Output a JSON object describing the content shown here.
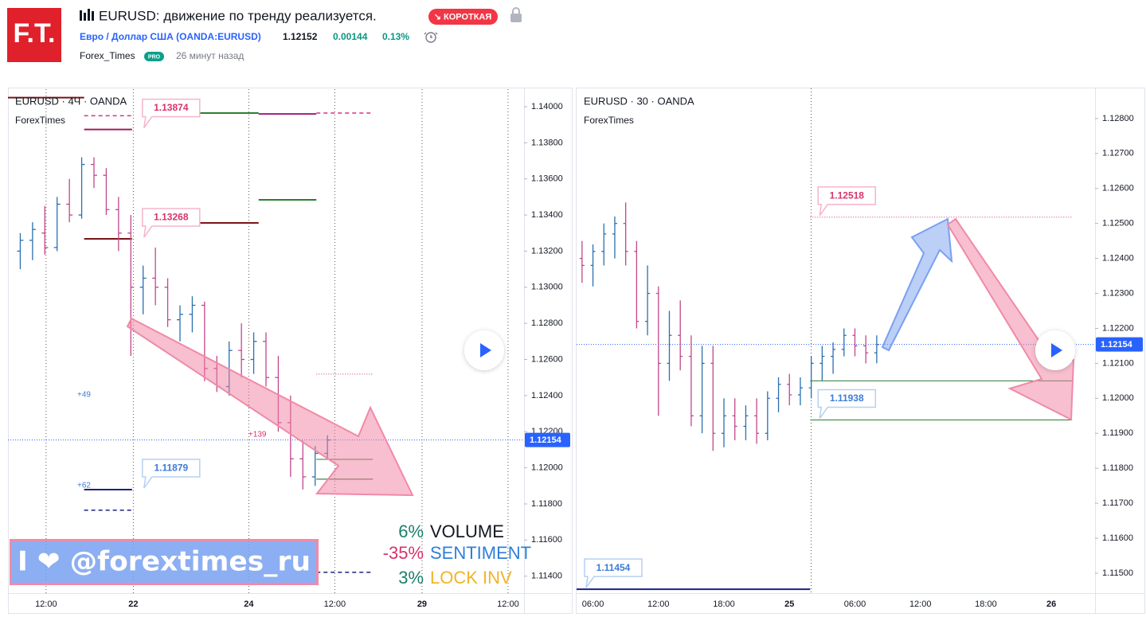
{
  "header": {
    "logo": "F.T.",
    "title": "EURUSD: движение по тренду реализуется.",
    "badge": "↘ КОРОТКАЯ",
    "symbol": "Евро / Доллар США (OANDA:EURUSD)",
    "price": "1.12152",
    "change": "0.00144",
    "change_pct": "0.13%",
    "author": "Forex_Times",
    "author_badge": "PRO",
    "time": "26 минут назад"
  },
  "overlay": {
    "banner": "I ❤ @forextimes_ru",
    "indicators": [
      {
        "value": "6%",
        "label": "VOLUME",
        "value_color": "#1b7f6a",
        "label_color": "#131722"
      },
      {
        "value": "-35%",
        "label": "SENTIMENT",
        "value_color": "#d6336c",
        "label_color": "#2f7fd8"
      },
      {
        "value": "3%",
        "label": "LOCK INV",
        "value_color": "#1b7f6a",
        "label_color": "#f0b429"
      }
    ]
  },
  "chart_data": [
    {
      "type": "ohlc",
      "title": "EURUSD · 4Ч · OANDA",
      "subtitle": "ForexTimes",
      "up_color": "#2a6fb0",
      "down_color": "#c2468c",
      "xlim": [
        -1,
        41
      ],
      "ylim": [
        1.11306,
        1.14097
      ],
      "grid": true,
      "last_price": 1.12154,
      "xticks": [
        {
          "value": 2.1,
          "label": "12:00"
        },
        {
          "value": 9.2,
          "label": "22"
        },
        {
          "value": 18.6,
          "label": "24"
        },
        {
          "value": 25.6,
          "label": "12:00"
        },
        {
          "value": 32.7,
          "label": "29"
        },
        {
          "value": 39.7,
          "label": "12:00"
        }
      ],
      "yticks": [
        {
          "value": 1.14,
          "label": "1.14000"
        },
        {
          "value": 1.138,
          "label": "1.13800"
        },
        {
          "value": 1.136,
          "label": "1.13600"
        },
        {
          "value": 1.134,
          "label": "1.13400"
        },
        {
          "value": 1.132,
          "label": "1.13200"
        },
        {
          "value": 1.13,
          "label": "1.13000"
        },
        {
          "value": 1.128,
          "label": "1.12800"
        },
        {
          "value": 1.126,
          "label": "1.12600"
        },
        {
          "value": 1.124,
          "label": "1.12400"
        },
        {
          "value": 1.122,
          "label": "1.12200"
        },
        {
          "value": 1.12,
          "label": "1.12000"
        },
        {
          "value": 1.118,
          "label": "1.11800"
        },
        {
          "value": 1.116,
          "label": "1.11600"
        },
        {
          "value": 1.114,
          "label": "1.11400"
        }
      ],
      "x": [
        0,
        1,
        2,
        3,
        4,
        5,
        6,
        7,
        8,
        9,
        10,
        11,
        12,
        13,
        14,
        15,
        16,
        17,
        18,
        19,
        20,
        21,
        22,
        23,
        24,
        25
      ],
      "open": [
        1.132,
        1.1326,
        1.133,
        1.1322,
        1.1346,
        1.134,
        1.1368,
        1.1362,
        1.1343,
        1.133,
        1.13,
        1.1305,
        1.13,
        1.1282,
        1.1285,
        1.129,
        1.1255,
        1.1245,
        1.1265,
        1.126,
        1.127,
        1.125,
        1.1225,
        1.1205,
        1.1195,
        1.1208
      ],
      "high": [
        1.133,
        1.1336,
        1.1345,
        1.135,
        1.136,
        1.1372,
        1.1372,
        1.1366,
        1.135,
        1.134,
        1.1312,
        1.1322,
        1.1305,
        1.129,
        1.1295,
        1.1292,
        1.1262,
        1.127,
        1.128,
        1.1275,
        1.1275,
        1.1262,
        1.124,
        1.1215,
        1.1212,
        1.1218
      ],
      "low": [
        1.131,
        1.1315,
        1.1318,
        1.132,
        1.1336,
        1.1338,
        1.1355,
        1.134,
        1.132,
        1.1262,
        1.1285,
        1.129,
        1.1278,
        1.127,
        1.1275,
        1.1248,
        1.1242,
        1.124,
        1.125,
        1.1252,
        1.1245,
        1.122,
        1.1195,
        1.1188,
        1.119,
        1.1205
      ],
      "close": [
        1.1326,
        1.1332,
        1.1322,
        1.1346,
        1.134,
        1.1368,
        1.1362,
        1.1343,
        1.133,
        1.13,
        1.1305,
        1.13,
        1.1282,
        1.1285,
        1.129,
        1.1255,
        1.1245,
        1.1265,
        1.126,
        1.127,
        1.125,
        1.1225,
        1.1205,
        1.1195,
        1.1208,
        1.12154
      ],
      "levels": [
        {
          "value": 1.1405,
          "from": -1,
          "to": 5.2,
          "color": "#7a1414",
          "style": "solid"
        },
        {
          "value": 1.13874,
          "from": 5.2,
          "to": 9.1,
          "color": "#a01e5a",
          "style": "solid",
          "labeled": true,
          "label_color": "#d6336c"
        },
        {
          "value": 1.1395,
          "from": 5.2,
          "to": 9.1,
          "color": "#d63384",
          "style": "dashed"
        },
        {
          "value": 1.13268,
          "from": 5.2,
          "to": 9.1,
          "color": "#7a1414",
          "style": "solid",
          "labeled": true,
          "label_color": "#d6336c"
        },
        {
          "value": 1.13356,
          "from": 10,
          "to": 19.4,
          "color": "#7a1414",
          "style": "solid"
        },
        {
          "value": 1.13965,
          "from": 14.6,
          "to": 19.4,
          "color": "#2e7d32",
          "style": "solid"
        },
        {
          "value": 1.13484,
          "from": 19.4,
          "to": 24.1,
          "color": "#2e7d32",
          "style": "solid"
        },
        {
          "value": 1.1396,
          "from": 19.4,
          "to": 24.1,
          "color": "#a01e7a",
          "style": "solid"
        },
        {
          "value": 1.13965,
          "from": 24.1,
          "to": 28.7,
          "color": "#d63384",
          "style": "dashed"
        },
        {
          "value": 1.12519,
          "from": 24.1,
          "to": 28.7,
          "color": "#d63384",
          "style": "dotted"
        },
        {
          "value": 1.11879,
          "from": 5.2,
          "to": 9.1,
          "color": "#1a237e",
          "style": "solid",
          "labeled": true,
          "label_color": "#3d7bd8"
        },
        {
          "value": 1.11765,
          "from": 5.2,
          "to": 9.1,
          "color": "#1a237e",
          "style": "dashed"
        },
        {
          "value": 1.12047,
          "from": 24.1,
          "to": 28.7,
          "color": "#2e7d32",
          "style": "thin"
        },
        {
          "value": 1.11937,
          "from": 24.1,
          "to": 28.7,
          "color": "#1b5e20",
          "style": "thin"
        },
        {
          "value": 1.11421,
          "from": 24.1,
          "to": 28.7,
          "color": "#1a237e",
          "style": "dashed"
        }
      ],
      "notes": [
        {
          "text": "+49",
          "x": 4.64,
          "price": 1.12404,
          "color": "#3d7bd8"
        },
        {
          "text": "+62",
          "x": 4.64,
          "price": 1.11901,
          "color": "#3d7bd8"
        },
        {
          "text": "+139",
          "x": 18.57,
          "price": 1.12183,
          "color": "#d6336c"
        }
      ]
    },
    {
      "type": "ohlc",
      "title": "EURUSD · 30 · OANDA",
      "subtitle": "ForexTimes",
      "up_color": "#2a6fb0",
      "down_color": "#c2468c",
      "xlim": [
        4.5,
        52
      ],
      "ylim": [
        1.11443,
        1.12884
      ],
      "grid": false,
      "last_price": 1.12154,
      "xticks": [
        {
          "value": 6,
          "label": "06:00"
        },
        {
          "value": 12,
          "label": "12:00"
        },
        {
          "value": 18,
          "label": "18:00"
        },
        {
          "value": 24,
          "label": "25"
        },
        {
          "value": 30,
          "label": "06:00"
        },
        {
          "value": 36,
          "label": "12:00"
        },
        {
          "value": 42,
          "label": "18:00"
        },
        {
          "value": 48,
          "label": "26"
        }
      ],
      "yticks": [
        {
          "value": 1.128,
          "label": "1.12800"
        },
        {
          "value": 1.127,
          "label": "1.12700"
        },
        {
          "value": 1.126,
          "label": "1.12600"
        },
        {
          "value": 1.125,
          "label": "1.12500"
        },
        {
          "value": 1.124,
          "label": "1.12400"
        },
        {
          "value": 1.123,
          "label": "1.12300"
        },
        {
          "value": 1.122,
          "label": "1.12200"
        },
        {
          "value": 1.121,
          "label": "1.12100"
        },
        {
          "value": 1.12,
          "label": "1.12000"
        },
        {
          "value": 1.119,
          "label": "1.11900"
        },
        {
          "value": 1.118,
          "label": "1.11800"
        },
        {
          "value": 1.117,
          "label": "1.11700"
        },
        {
          "value": 1.116,
          "label": "1.11600"
        },
        {
          "value": 1.115,
          "label": "1.11500"
        }
      ],
      "x": [
        5,
        6,
        7,
        8,
        9,
        10,
        11,
        12,
        13,
        14,
        15,
        16,
        17,
        18,
        19,
        20,
        21,
        22,
        23,
        24,
        25,
        26,
        27,
        28,
        29,
        30,
        31,
        32
      ],
      "open": [
        1.124,
        1.1238,
        1.1242,
        1.1247,
        1.125,
        1.1242,
        1.1222,
        1.123,
        1.121,
        1.1218,
        1.1212,
        1.1195,
        1.121,
        1.119,
        1.1195,
        1.1192,
        1.1195,
        1.119,
        1.12,
        1.1204,
        1.1201,
        1.1203,
        1.121,
        1.1212,
        1.1214,
        1.1218,
        1.1215,
        1.1213
      ],
      "high": [
        1.1245,
        1.1244,
        1.125,
        1.1252,
        1.1256,
        1.1245,
        1.1238,
        1.1232,
        1.1225,
        1.1228,
        1.1218,
        1.1215,
        1.1215,
        1.12,
        1.12,
        1.1198,
        1.12,
        1.1202,
        1.1206,
        1.1207,
        1.1206,
        1.1212,
        1.1215,
        1.1216,
        1.122,
        1.122,
        1.1218,
        1.1218
      ],
      "low": [
        1.1233,
        1.1232,
        1.1238,
        1.124,
        1.1238,
        1.122,
        1.1218,
        1.1195,
        1.1205,
        1.1208,
        1.1192,
        1.119,
        1.1185,
        1.1186,
        1.1188,
        1.1188,
        1.1187,
        1.1188,
        1.1196,
        1.1198,
        1.1198,
        1.12,
        1.1205,
        1.1207,
        1.1212,
        1.1212,
        1.121,
        1.121
      ],
      "close": [
        1.1238,
        1.1242,
        1.1247,
        1.125,
        1.1242,
        1.1222,
        1.123,
        1.121,
        1.1218,
        1.1212,
        1.1195,
        1.121,
        1.119,
        1.1195,
        1.1192,
        1.1195,
        1.119,
        1.12,
        1.1204,
        1.1201,
        1.1203,
        1.121,
        1.1212,
        1.1214,
        1.1218,
        1.1215,
        1.1213,
        1.12154
      ],
      "levels": [
        {
          "value": 1.12518,
          "from": 25.9,
          "to": 49.9,
          "color": "#d63384",
          "style": "dotted",
          "labeled": true,
          "label_color": "#d6336c"
        },
        {
          "value": 1.1205,
          "from": 25.9,
          "to": 49.9,
          "color": "#2e7d32",
          "style": "thin"
        },
        {
          "value": 1.11938,
          "from": 25.9,
          "to": 49.9,
          "color": "#2e7d32",
          "style": "thin",
          "labeled": true,
          "label_color": "#3d7bd8"
        },
        {
          "value": 1.11454,
          "from": 4.5,
          "to": 25.9,
          "color": "#1a237e",
          "style": "solid",
          "labeled": true,
          "label_color": "#3d7bd8"
        }
      ],
      "notes": []
    }
  ]
}
